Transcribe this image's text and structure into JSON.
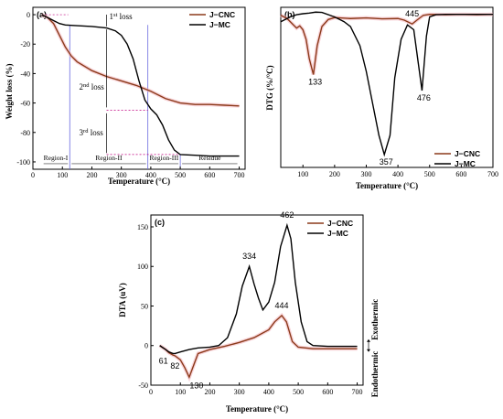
{
  "chart_data": [
    {
      "panel": "(a)",
      "type": "line",
      "xlabel": "Temperature (°C)",
      "ylabel": "Weight loss (%)",
      "xlim": [
        0,
        720
      ],
      "ylim": [
        -105,
        5
      ],
      "xticks": [
        0,
        100,
        200,
        300,
        400,
        500,
        600,
        700
      ],
      "yticks": [
        0,
        -20,
        -40,
        -60,
        -80,
        -100
      ],
      "legend": "top-right",
      "series": [
        {
          "name": "J−CNC",
          "color": "#8B3A1A",
          "x": [
            30,
            50,
            70,
            90,
            110,
            130,
            150,
            200,
            250,
            300,
            350,
            400,
            450,
            500,
            550,
            600,
            650,
            700
          ],
          "y": [
            0,
            -2,
            -6,
            -14,
            -22,
            -28,
            -32,
            -38,
            -42,
            -45,
            -48,
            -52,
            -57,
            -60,
            -61,
            -61,
            -61.5,
            -62
          ]
        },
        {
          "name": "J−MC",
          "color": "#000000",
          "x": [
            30,
            50,
            70,
            90,
            110,
            150,
            200,
            250,
            280,
            300,
            320,
            340,
            360,
            380,
            400,
            420,
            440,
            460,
            480,
            500,
            550,
            600,
            650,
            700
          ],
          "y": [
            0,
            -2,
            -4,
            -6,
            -7,
            -7.5,
            -8,
            -9,
            -11,
            -14,
            -20,
            -30,
            -45,
            -58,
            -64,
            -68,
            -75,
            -85,
            -92,
            -95,
            -95.5,
            -96,
            -96,
            -96
          ]
        }
      ],
      "annotations": [
        {
          "text": "1",
          "sup": "st",
          "suffix": " loss"
        },
        {
          "text": "2",
          "sup": "nd",
          "suffix": " loss"
        },
        {
          "text": "3",
          "sup": "rd",
          "suffix": " loss"
        }
      ],
      "regions": [
        "Region-I",
        "Region-II",
        "Region-III",
        "Residue"
      ]
    },
    {
      "panel": "(b)",
      "type": "line",
      "xlabel": "Temperature (°C)",
      "ylabel": "DTG (%/°C)",
      "xlim": [
        30,
        700
      ],
      "xticks": [
        100,
        200,
        300,
        400,
        500,
        600,
        700
      ],
      "legend": "bottom-right",
      "series": [
        {
          "name": "J−CNC",
          "color": "#8B3A1A",
          "x": [
            30,
            50,
            70,
            80,
            90,
            100,
            110,
            120,
            133,
            145,
            160,
            180,
            200,
            250,
            300,
            350,
            400,
            420,
            445,
            460,
            480,
            500,
            550,
            600,
            650,
            700
          ],
          "y": [
            -0.5,
            -1.5,
            -3.5,
            -4.5,
            -3.8,
            -5,
            -8,
            -14,
            -19,
            -10,
            -4,
            -1.8,
            -1.2,
            -1.5,
            -1.3,
            -1.6,
            -1.5,
            -2,
            -3.2,
            -2,
            -0.5,
            -0.2,
            -0.3,
            -0.2,
            -0.3,
            -0.2
          ]
        },
        {
          "name": "J−MC",
          "color": "#000000",
          "x": [
            30,
            60,
            80,
            100,
            120,
            140,
            160,
            200,
            230,
            250,
            280,
            300,
            320,
            340,
            357,
            375,
            390,
            410,
            430,
            450,
            465,
            476,
            490,
            500,
            520,
            550,
            600,
            650,
            700
          ],
          "y": [
            -2.5,
            -1,
            -0.3,
            0,
            0.2,
            0.5,
            0.4,
            -1,
            -2.5,
            -4,
            -10,
            -18,
            -28,
            -38,
            -44,
            -38,
            -20,
            -8,
            -3.5,
            -5,
            -16,
            -24,
            -7,
            -1,
            -0.3,
            -0.2,
            -0.2,
            -0.2,
            -0.2
          ]
        }
      ],
      "peaks": [
        {
          "label": "133",
          "x": 133
        },
        {
          "label": "357",
          "x": 357
        },
        {
          "label": "445",
          "x": 445
        },
        {
          "label": "476",
          "x": 476
        }
      ]
    },
    {
      "panel": "(c)",
      "type": "line",
      "xlabel": "Temperature (°C)",
      "ylabel": "DTA (uV)",
      "xlim": [
        0,
        720
      ],
      "ylim": [
        -50,
        165
      ],
      "xticks": [
        0,
        100,
        200,
        300,
        400,
        500,
        600,
        700
      ],
      "yticks": [
        -50,
        0,
        50,
        100,
        150
      ],
      "legend": "top-right",
      "side_labels": [
        "Endothermic",
        "Exothermic"
      ],
      "series": [
        {
          "name": "J−CNC",
          "color": "#8B3A1A",
          "x": [
            30,
            50,
            61,
            75,
            82,
            100,
            115,
            130,
            145,
            160,
            200,
            250,
            300,
            350,
            400,
            420,
            444,
            460,
            480,
            500,
            550,
            600,
            650,
            700
          ],
          "y": [
            0,
            -5,
            -9,
            -12,
            -13,
            -18,
            -28,
            -40,
            -25,
            -10,
            -5,
            -1,
            4,
            10,
            20,
            30,
            38,
            30,
            5,
            -2,
            -4,
            -4,
            -4,
            -4
          ]
        },
        {
          "name": "J−MC",
          "color": "#000000",
          "x": [
            30,
            50,
            61,
            75,
            82,
            100,
            130,
            160,
            200,
            230,
            260,
            290,
            310,
            334,
            350,
            365,
            380,
            400,
            420,
            440,
            462,
            475,
            490,
            510,
            530,
            550,
            600,
            650,
            700
          ],
          "y": [
            0,
            -5,
            -8,
            -10,
            -10,
            -8,
            -5,
            -3,
            -2,
            0,
            10,
            40,
            75,
            100,
            78,
            60,
            45,
            55,
            80,
            125,
            152,
            135,
            80,
            30,
            5,
            0,
            -1,
            -1,
            -1
          ]
        }
      ],
      "peaks": [
        {
          "label": "61",
          "x": 61
        },
        {
          "label": "82",
          "x": 82
        },
        {
          "label": "130",
          "x": 130
        },
        {
          "label": "334",
          "x": 334
        },
        {
          "label": "444",
          "x": 444
        },
        {
          "label": "462",
          "x": 462
        }
      ]
    }
  ]
}
